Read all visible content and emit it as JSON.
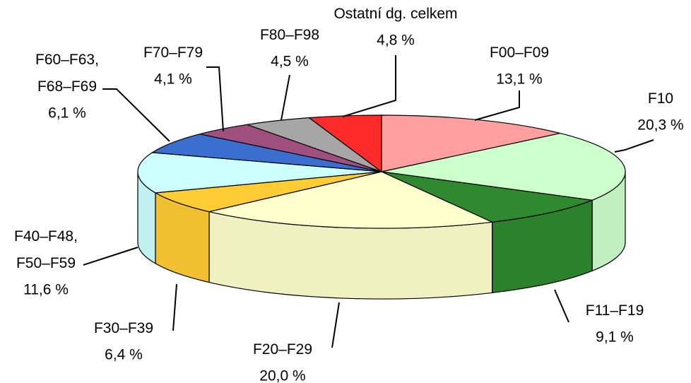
{
  "chart_data": {
    "type": "pie",
    "categories": [
      "F00–F09",
      "F10",
      "F11–F19",
      "F20–F29",
      "F30–F39",
      "F40–F48,\nF50–F59",
      "F60–F63,\nF68–F69",
      "F70–F79",
      "F80–F98",
      "Ostatní dg. celkem"
    ],
    "values": [
      13.1,
      20.3,
      9.1,
      20.0,
      6.4,
      11.6,
      6.1,
      4.1,
      4.5,
      4.8
    ],
    "value_labels": [
      "13,1 %",
      "20,3 %",
      "9,1 %",
      "20,0 %",
      "6,4 %",
      "11,6 %",
      "6,1 %",
      "4,1 %",
      "4,5 %",
      "4,8 %"
    ],
    "colors": [
      "#ff9f9f",
      "#ccffcc",
      "#2f8a2f",
      "#ffffcc",
      "#ffcc33",
      "#ccffff",
      "#3a6fd0",
      "#a0507e",
      "#a6a6a6",
      "#ff2a2a"
    ]
  }
}
